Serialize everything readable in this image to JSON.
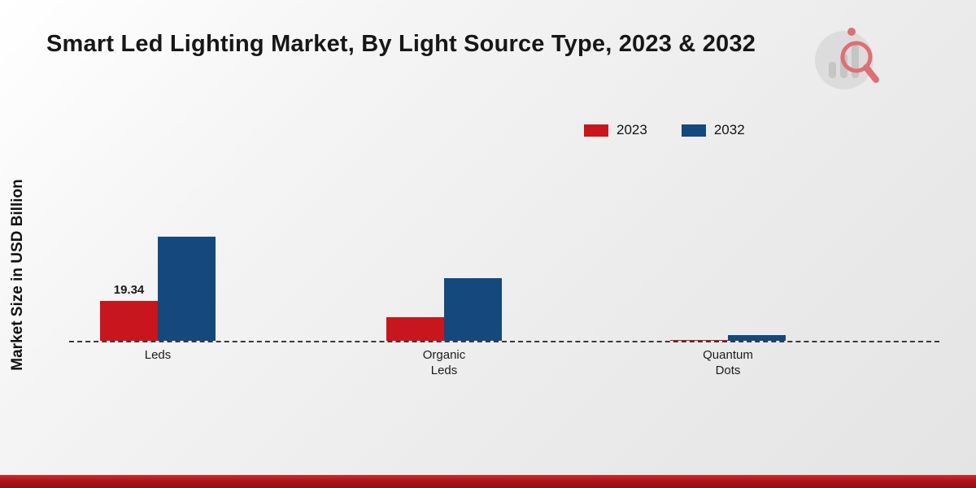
{
  "chart_data": {
    "type": "bar",
    "title": "Smart Led Lighting Market, By Light Source Type, 2023 & 2032",
    "ylabel": "Market Size in USD Billion",
    "xlabel": "",
    "categories": [
      "Leds",
      "Organic\nLeds",
      "Quantum\nDots"
    ],
    "series": [
      {
        "name": "2023",
        "color": "#c9151d",
        "values": [
          19.34,
          11.5,
          0.4
        ]
      },
      {
        "name": "2032",
        "color": "#15497d",
        "values": [
          50.5,
          30.2,
          2.7
        ]
      }
    ],
    "ylim": [
      0,
      55
    ],
    "grid": false,
    "legend_position": "top-right",
    "baseline_style": "dashed",
    "bar_labels": [
      {
        "category_index": 0,
        "series_index": 0,
        "text": "19.34"
      }
    ]
  }
}
